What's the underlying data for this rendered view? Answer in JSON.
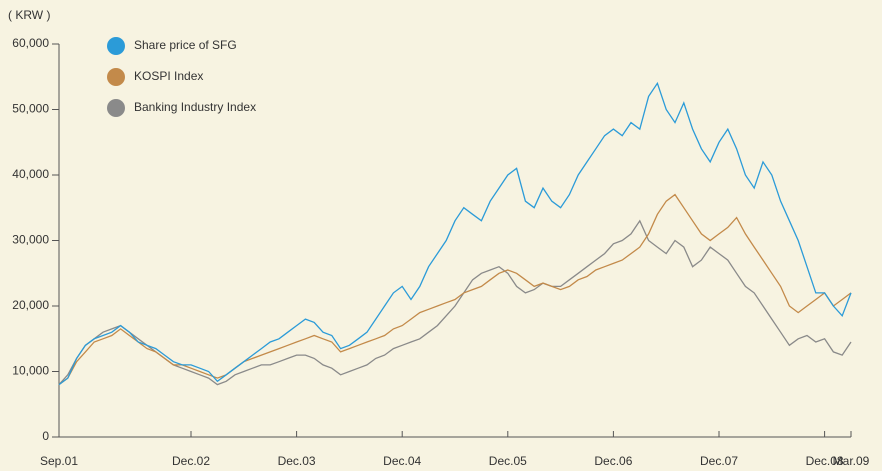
{
  "chart_data": {
    "type": "line",
    "y_unit": "( KRW )",
    "x": [
      "2001-09",
      "2001-10",
      "2001-11",
      "2001-12",
      "2002-01",
      "2002-02",
      "2002-03",
      "2002-04",
      "2002-05",
      "2002-06",
      "2002-07",
      "2002-08",
      "2002-09",
      "2002-10",
      "2002-11",
      "2002-12",
      "2003-01",
      "2003-02",
      "2003-03",
      "2003-04",
      "2003-05",
      "2003-06",
      "2003-07",
      "2003-08",
      "2003-09",
      "2003-10",
      "2003-11",
      "2003-12",
      "2004-01",
      "2004-02",
      "2004-03",
      "2004-04",
      "2004-05",
      "2004-06",
      "2004-07",
      "2004-08",
      "2004-09",
      "2004-10",
      "2004-11",
      "2004-12",
      "2005-01",
      "2005-02",
      "2005-03",
      "2005-04",
      "2005-05",
      "2005-06",
      "2005-07",
      "2005-08",
      "2005-09",
      "2005-10",
      "2005-11",
      "2005-12",
      "2006-01",
      "2006-02",
      "2006-03",
      "2006-04",
      "2006-05",
      "2006-06",
      "2006-07",
      "2006-08",
      "2006-09",
      "2006-10",
      "2006-11",
      "2006-12",
      "2007-01",
      "2007-02",
      "2007-03",
      "2007-04",
      "2007-05",
      "2007-06",
      "2007-07",
      "2007-08",
      "2007-09",
      "2007-10",
      "2007-11",
      "2007-12",
      "2008-01",
      "2008-02",
      "2008-03",
      "2008-04",
      "2008-05",
      "2008-06",
      "2008-07",
      "2008-08",
      "2008-09",
      "2008-10",
      "2008-11",
      "2008-12",
      "2009-01",
      "2009-02",
      "2009-03"
    ],
    "series": [
      {
        "name": "Share price of SFG",
        "color": "#2b9bd8",
        "values": [
          8000,
          9000,
          12000,
          14000,
          15000,
          15500,
          16000,
          17000,
          16000,
          14500,
          14000,
          13500,
          12500,
          11500,
          11000,
          11000,
          10500,
          10000,
          8500,
          9500,
          10500,
          11500,
          12500,
          13500,
          14500,
          15000,
          16000,
          17000,
          18000,
          17500,
          16000,
          15500,
          13500,
          14000,
          15000,
          16000,
          18000,
          20000,
          22000,
          23000,
          21000,
          23000,
          26000,
          28000,
          30000,
          33000,
          35000,
          34000,
          33000,
          36000,
          38000,
          40000,
          41000,
          36000,
          35000,
          38000,
          36000,
          35000,
          37000,
          40000,
          42000,
          44000,
          46000,
          47000,
          46000,
          48000,
          47000,
          52000,
          54000,
          50000,
          48000,
          51000,
          47000,
          44000,
          42000,
          45000,
          47000,
          44000,
          40000,
          38000,
          42000,
          40000,
          36000,
          33000,
          30000,
          26000,
          22000,
          22000,
          20000,
          18500,
          22000
        ]
      },
      {
        "name": "KOSPI Index",
        "color": "#c38a4a",
        "values": [
          8000,
          9000,
          11500,
          13000,
          14500,
          15000,
          15500,
          16500,
          15500,
          14500,
          13500,
          13000,
          12000,
          11000,
          11000,
          10500,
          10000,
          9500,
          9000,
          9500,
          10500,
          11500,
          12000,
          12500,
          13000,
          13500,
          14000,
          14500,
          15000,
          15500,
          15000,
          14500,
          13000,
          13500,
          14000,
          14500,
          15000,
          15500,
          16500,
          17000,
          18000,
          19000,
          19500,
          20000,
          20500,
          21000,
          22000,
          22500,
          23000,
          24000,
          25000,
          25500,
          25000,
          24000,
          23000,
          23500,
          23000,
          22500,
          23000,
          24000,
          24500,
          25500,
          26000,
          26500,
          27000,
          28000,
          29000,
          31000,
          34000,
          36000,
          37000,
          35000,
          33000,
          31000,
          30000,
          31000,
          32000,
          33500,
          31000,
          29000,
          27000,
          25000,
          23000,
          20000,
          19000,
          20000,
          21000,
          22000,
          20000,
          21000,
          22000
        ]
      },
      {
        "name": "Banking Industry Index",
        "color": "#8a8a8a",
        "values": [
          8000,
          9500,
          12000,
          14000,
          15000,
          16000,
          16500,
          17000,
          16000,
          15000,
          14000,
          13000,
          12000,
          11000,
          10500,
          10000,
          9500,
          9000,
          8000,
          8500,
          9500,
          10000,
          10500,
          11000,
          11000,
          11500,
          12000,
          12500,
          12500,
          12000,
          11000,
          10500,
          9500,
          10000,
          10500,
          11000,
          12000,
          12500,
          13500,
          14000,
          14500,
          15000,
          16000,
          17000,
          18500,
          20000,
          22000,
          24000,
          25000,
          25500,
          26000,
          25000,
          23000,
          22000,
          22500,
          23500,
          23000,
          23000,
          24000,
          25000,
          26000,
          27000,
          28000,
          29500,
          30000,
          31000,
          33000,
          30000,
          29000,
          28000,
          30000,
          29000,
          26000,
          27000,
          29000,
          28000,
          27000,
          25000,
          23000,
          22000,
          20000,
          18000,
          16000,
          14000,
          15000,
          15500,
          14500,
          15000,
          13000,
          12500,
          14500
        ]
      }
    ],
    "ylim": [
      0,
      60000
    ],
    "yticks": [
      0,
      {
        "value": 10000,
        "label": "10,000"
      },
      {
        "value": 20000,
        "label": "20,000"
      },
      {
        "value": 30000,
        "label": "30,000"
      },
      {
        "value": 40000,
        "label": "40,000"
      },
      {
        "value": 50000,
        "label": "50,000"
      },
      {
        "value": 60000,
        "label": "60,000"
      }
    ],
    "xticks": [
      {
        "value": "2001-09",
        "label": "Sep.01"
      },
      {
        "value": "2002-12",
        "label": "Dec.02"
      },
      {
        "value": "2003-12",
        "label": "Dec.03"
      },
      {
        "value": "2004-12",
        "label": "Dec.04"
      },
      {
        "value": "2005-12",
        "label": "Dec.05"
      },
      {
        "value": "2006-12",
        "label": "Dec.06"
      },
      {
        "value": "2007-12",
        "label": "Dec.07"
      },
      {
        "value": "2008-12",
        "label": "Dec.08"
      },
      {
        "value": "2009-03",
        "label": "Mar.09"
      }
    ],
    "legend": "top-left"
  }
}
